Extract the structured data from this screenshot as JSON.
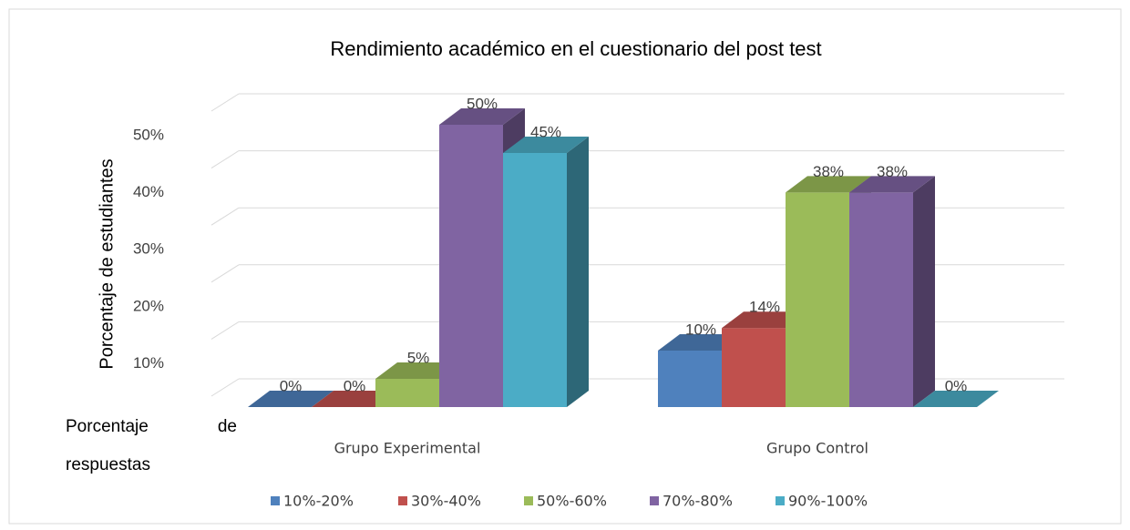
{
  "chart_data": {
    "type": "bar3d",
    "title": "Rendimiento académico en el cuestionario del post test",
    "ylabel": "Porcentaje de estudiantes",
    "xlabel": "Porcentaje de respuestas",
    "categories": [
      "Grupo Experimental",
      "Grupo Control"
    ],
    "series": [
      {
        "name": "10%-20%",
        "color": "#4f81bd",
        "values": [
          0,
          10
        ],
        "value_labels": [
          "0%",
          "10%"
        ]
      },
      {
        "name": "30%-40%",
        "color": "#c0504d",
        "values": [
          0,
          14
        ],
        "value_labels": [
          "0%",
          "14%"
        ]
      },
      {
        "name": "50%-60%",
        "color": "#9bbb59",
        "values": [
          5,
          38
        ],
        "value_labels": [
          "5%",
          "38%"
        ]
      },
      {
        "name": "70%-80%",
        "color": "#8064a2",
        "values": [
          50,
          38
        ],
        "value_labels": [
          "50%",
          "38%"
        ]
      },
      {
        "name": "90%-100%",
        "color": "#4bacc6",
        "values": [
          45,
          0
        ],
        "value_labels": [
          "45%",
          "0%"
        ]
      }
    ],
    "ylim": [
      0,
      50
    ],
    "yticks": [
      {
        "value": 10,
        "label": "10%"
      },
      {
        "value": 20,
        "label": "20%"
      },
      {
        "value": 30,
        "label": "30%"
      },
      {
        "value": 40,
        "label": "40%"
      },
      {
        "value": 50,
        "label": "50%"
      }
    ],
    "grid": true,
    "legend": "bottom"
  }
}
